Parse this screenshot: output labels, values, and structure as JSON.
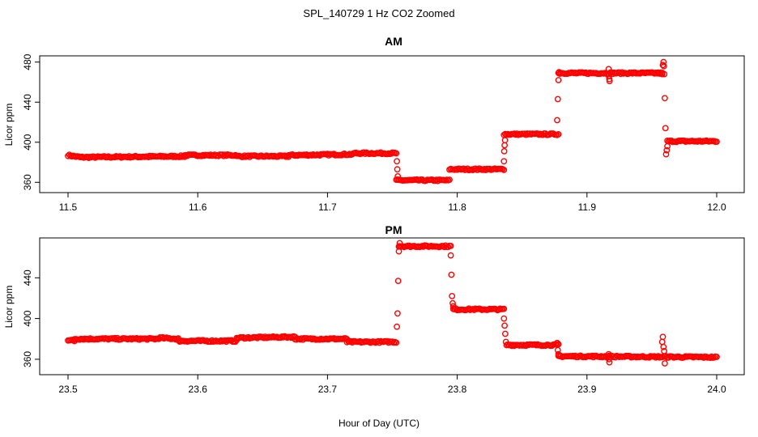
{
  "figure": {
    "title": "SPL_140729  1 Hz CO2 Zoomed",
    "xlabel": "Hour of Day (UTC)"
  },
  "colors": {
    "points": "#ff0000"
  },
  "chart_data": [
    {
      "type": "scatter",
      "title": "AM",
      "ylabel": "Licor ppm",
      "xlim": [
        11.5,
        12.0
      ],
      "ylim": [
        357,
        483
      ],
      "xticks": [
        11.5,
        11.6,
        11.7,
        11.8,
        11.9,
        12.0
      ],
      "xtick_labels": [
        "11.5",
        "11.6",
        "11.7",
        "11.8",
        "11.9",
        "12.0"
      ],
      "yticks": [
        360,
        400,
        440,
        480
      ],
      "ytick_labels": [
        "360",
        "400",
        "440",
        "480"
      ],
      "grid": false,
      "marker": "open-circle",
      "series": [
        {
          "segments": [
            {
              "x": [
                11.5,
                11.51
              ],
              "y": [
                387,
                385
              ]
            },
            {
              "x": [
                11.51,
                11.59
              ],
              "y": [
                385,
                386
              ]
            },
            {
              "x": [
                11.59,
                11.63
              ],
              "y": [
                387,
                387
              ]
            },
            {
              "x": [
                11.63,
                11.67
              ],
              "y": [
                386,
                386
              ]
            },
            {
              "x": [
                11.67,
                11.72
              ],
              "y": [
                387,
                388
              ]
            },
            {
              "x": [
                11.72,
                11.753
              ],
              "y": [
                389,
                389
              ]
            },
            {
              "x": [
                11.753,
                11.794
              ],
              "y": [
                362,
                362
              ]
            },
            {
              "x": [
                11.794,
                11.836
              ],
              "y": [
                373,
                373
              ]
            },
            {
              "x": [
                11.836,
                11.878
              ],
              "y": [
                408,
                408
              ]
            },
            {
              "x": [
                11.878,
                11.958
              ],
              "y": [
                469,
                469
              ]
            },
            {
              "x": [
                11.962,
                12.0
              ],
              "y": [
                401,
                401
              ]
            }
          ],
          "extra_points": {
            "x": [
              11.7535,
              11.7538,
              11.7542,
              11.836,
              11.8362,
              11.8365,
              11.8368,
              11.877,
              11.8775,
              11.878,
              11.8785,
              11.9167,
              11.9169,
              11.9172,
              11.9174,
              11.958,
              11.9585,
              11.959,
              11.9593,
              11.9596,
              11.96,
              11.9605,
              11.961,
              11.9615,
              11.962
            ],
            "y": [
              381,
              373,
              366,
              381,
              391,
              397,
              402,
              422,
              443,
              462,
              470,
              473,
              466,
              463,
              461,
              468,
              477,
              480,
              476,
              468,
              444,
              414,
              388,
              392,
              396
            ]
          }
        }
      ]
    },
    {
      "type": "scatter",
      "title": "PM",
      "ylabel": "Licor ppm",
      "xlim": [
        23.5,
        24.0
      ],
      "ylim": [
        352,
        476
      ],
      "xticks": [
        23.5,
        23.6,
        23.7,
        23.8,
        23.9,
        24.0
      ],
      "xtick_labels": [
        "23.5",
        "23.6",
        "23.7",
        "23.8",
        "23.9",
        "24.0"
      ],
      "yticks": [
        360,
        400,
        440
      ],
      "ytick_labels": [
        "360",
        "400",
        "440"
      ],
      "grid": false,
      "marker": "open-circle",
      "series": [
        {
          "segments": [
            {
              "x": [
                23.5,
                23.505
              ],
              "y": [
                379,
                378
              ]
            },
            {
              "x": [
                23.505,
                23.57
              ],
              "y": [
                380,
                380
              ]
            },
            {
              "x": [
                23.57,
                23.585
              ],
              "y": [
                381,
                380
              ]
            },
            {
              "x": [
                23.585,
                23.63
              ],
              "y": [
                378,
                378
              ]
            },
            {
              "x": [
                23.63,
                23.675
              ],
              "y": [
                381,
                382
              ]
            },
            {
              "x": [
                23.675,
                23.715
              ],
              "y": [
                380,
                380
              ]
            },
            {
              "x": [
                23.715,
                23.753
              ],
              "y": [
                377,
                377
              ]
            },
            {
              "x": [
                23.755,
                23.795
              ],
              "y": [
                471,
                471
              ]
            },
            {
              "x": [
                23.797,
                23.836
              ],
              "y": [
                409,
                409
              ]
            },
            {
              "x": [
                23.838,
                23.878
              ],
              "y": [
                374,
                374
              ]
            },
            {
              "x": [
                23.878,
                24.0
              ],
              "y": [
                363,
                362
              ]
            }
          ],
          "extra_points": {
            "x": [
              23.7535,
              23.754,
              23.7545,
              23.755,
              23.7553,
              23.7556,
              23.795,
              23.7955,
              23.796,
              23.7965,
              23.797,
              23.836,
              23.8365,
              23.837,
              23.8375,
              23.877,
              23.8775,
              23.878,
              23.9167,
              23.917,
              23.9173,
              23.958,
              23.9585,
              23.959,
              23.9595,
              23.96
            ],
            "y": [
              392,
              405,
              437,
              466,
              471,
              474,
              462,
              443,
              422,
              415,
              412,
              400,
              393,
              385,
              377,
              376,
              369,
              365,
              365,
              360,
              357,
              377,
              382,
              372,
              368,
              356
            ]
          }
        }
      ]
    }
  ]
}
